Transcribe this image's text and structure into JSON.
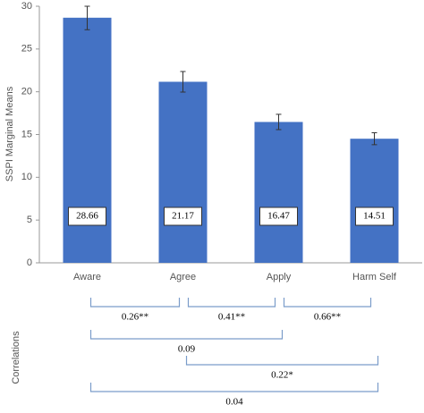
{
  "chart_data": {
    "type": "bar",
    "y_label": "SSPI Marginal Means",
    "categories": [
      "Aware",
      "Agree",
      "Apply",
      "Harm Self"
    ],
    "values": [
      28.66,
      21.17,
      16.47,
      14.51
    ],
    "errors": [
      1.4,
      1.2,
      0.9,
      0.7
    ],
    "color": "#4472c4",
    "ylim": [
      0,
      30
    ],
    "yticks": [
      0,
      5,
      10,
      15,
      20,
      25,
      30
    ],
    "grid": false,
    "correlations_label": "Correlations",
    "correlations": [
      {
        "pair": [
          "Aware",
          "Agree"
        ],
        "label": "0.26**"
      },
      {
        "pair": [
          "Agree",
          "Apply"
        ],
        "label": "0.41**"
      },
      {
        "pair": [
          "Apply",
          "Harm Self"
        ],
        "label": "0.66**"
      },
      {
        "pair": [
          "Aware",
          "Apply"
        ],
        "label": "0.09"
      },
      {
        "pair": [
          "Agree",
          "Harm Self"
        ],
        "label": "0.22*"
      },
      {
        "pair": [
          "Aware",
          "Harm Self"
        ],
        "label": "0.04"
      }
    ]
  }
}
